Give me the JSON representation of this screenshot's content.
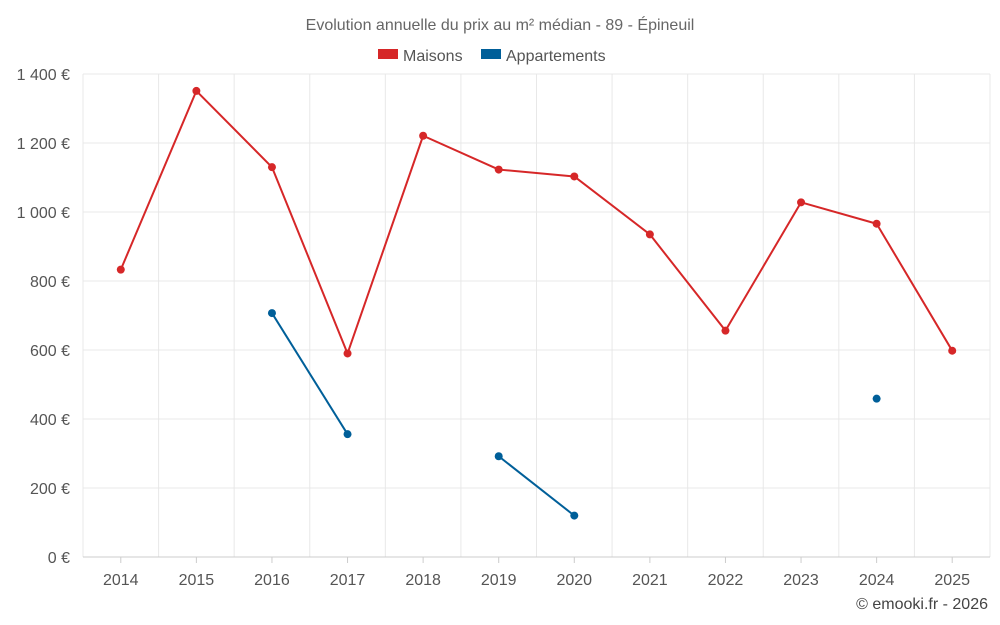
{
  "chart_data": {
    "type": "line",
    "title": "Evolution annuelle du prix au m² médian - 89 - Épineuil",
    "categories": [
      "2014",
      "2015",
      "2016",
      "2017",
      "2018",
      "2019",
      "2020",
      "2021",
      "2022",
      "2023",
      "2024",
      "2025"
    ],
    "ylim": [
      0,
      1400
    ],
    "yticks": [
      0,
      200,
      400,
      600,
      800,
      1000,
      1200,
      1400
    ],
    "ytick_labels": [
      "0 €",
      "200 €",
      "400 €",
      "600 €",
      "800 €",
      "1 000 €",
      "1 200 €",
      "1 400 €"
    ],
    "grid": true,
    "legend_position": "top-center",
    "series": [
      {
        "name": "Maisons",
        "color": "#d62728",
        "values": [
          833,
          1351,
          1130,
          590,
          1221,
          1123,
          1103,
          935,
          656,
          1028,
          966,
          598
        ]
      },
      {
        "name": "Appartements",
        "color": "#005f99",
        "values": [
          null,
          null,
          707,
          356,
          null,
          292,
          120,
          null,
          null,
          null,
          459,
          null
        ]
      }
    ],
    "credit": "© emooki.fr - 2026"
  }
}
